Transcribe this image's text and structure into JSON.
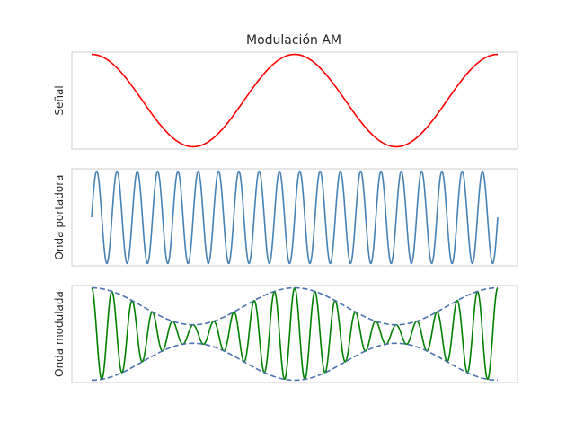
{
  "chart_data": {
    "type": "line",
    "title": "Modulación AM",
    "x": {
      "range": [
        0,
        1
      ],
      "samples": 900
    },
    "panels": [
      {
        "ylabel": "Señal",
        "ylim": [
          -1.05,
          1.05
        ],
        "series": [
          {
            "formula": "cos(2*pi*2*t)",
            "frequency_hz": 2,
            "amplitude": 1,
            "color": "#ff0000",
            "dashed": false
          }
        ]
      },
      {
        "ylabel": "Onda portadora",
        "ylim": [
          -1.05,
          1.05
        ],
        "series": [
          {
            "formula": "sin(2*pi*20*t)",
            "frequency_hz": 20,
            "amplitude": 1,
            "color": "#4682b4",
            "dashed": false
          }
        ]
      },
      {
        "ylabel": "Onda modulada",
        "ylim": [
          -1.05,
          1.05
        ],
        "series": [
          {
            "formula": "(0.6+0.4*cos(2*pi*2*t))*cos(2*pi*20*t)",
            "color": "#008000",
            "dashed": false
          },
          {
            "formula": "0.6+0.4*cos(2*pi*2*t)",
            "color": "#4c72b0",
            "dashed": true
          },
          {
            "formula": "-(0.6+0.4*cos(2*pi*2*t))",
            "color": "#4c72b0",
            "dashed": true
          }
        ]
      }
    ],
    "grid": false,
    "legend": "none"
  }
}
